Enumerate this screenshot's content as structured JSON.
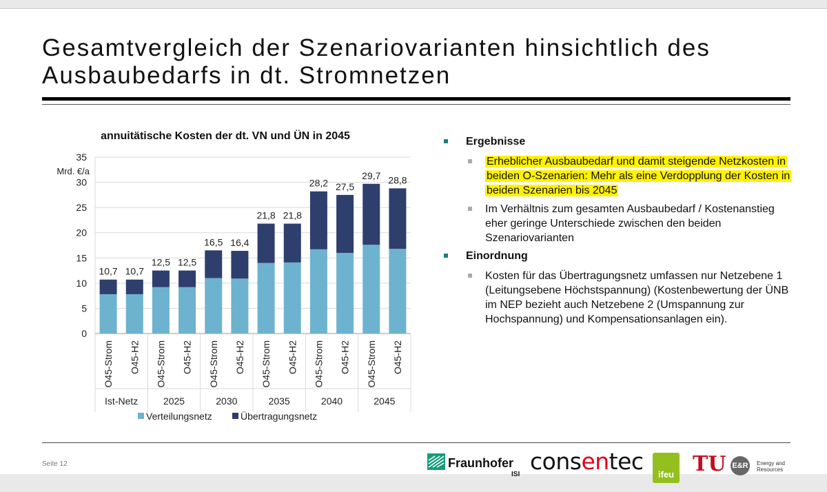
{
  "title_line1": "Gesamtvergleich der Szenariovarianten hinsichtlich des",
  "title_line2": "Ausbaubedarfs in dt. Stromnetzen",
  "page_number": "Seite 12",
  "chart_data": {
    "type": "bar",
    "stacked": true,
    "title": "annuitätische Kosten der dt. VN und ÜN in 2045",
    "ylabel": "Mrd. €/a",
    "ylim": [
      0,
      35
    ],
    "yticks": [
      "0",
      "5",
      "10",
      "15",
      "20",
      "25",
      "30",
      "35"
    ],
    "grid": true,
    "categories": [
      "O45-Strom",
      "O45-H2",
      "O45-Strom",
      "O45-H2",
      "O45-Strom",
      "O45-H2",
      "O45-Strom",
      "O45-H2",
      "O45-Strom",
      "O45-H2",
      "O45-Strom",
      "O45-H2"
    ],
    "groups": [
      "Ist-Netz",
      "2025",
      "2030",
      "2035",
      "2040",
      "2045"
    ],
    "series": [
      {
        "name": "Verteilungsnetz",
        "color": "#6db3cf",
        "values": [
          7.8,
          7.8,
          9.2,
          9.2,
          11.0,
          10.9,
          14.0,
          14.1,
          16.7,
          16.0,
          17.6,
          16.8
        ]
      },
      {
        "name": "Übertragungsnetz",
        "color": "#2e3f6e",
        "values": [
          2.9,
          2.9,
          3.3,
          3.3,
          5.5,
          5.5,
          7.8,
          7.7,
          11.5,
          11.5,
          12.1,
          12.0
        ]
      }
    ],
    "totals": [
      "10,7",
      "10,7",
      "12,5",
      "12,5",
      "16,5",
      "16,4",
      "21,8",
      "21,8",
      "28,2",
      "27,5",
      "29,7",
      "28,8"
    ],
    "legend_position": "bottom"
  },
  "bullets": {
    "h1": "Ergebnisse",
    "b1_highlight": "Erheblicher Ausbaubedarf und damit steigende Netzkosten in beiden O-Szenarien: Mehr als eine Verdopplung der Kosten in beiden Szenarien bis 2045",
    "b2": "Im Verhältnis zum gesamten Ausbaubedarf / Kostenanstieg eher geringe Unterschiede zwischen den beiden Szenariovarianten",
    "h2": "Einordnung",
    "b3": "Kosten für das Übertragungsnetz umfassen nur Netzebene 1 (Leitungsebene Höchstspannung) (Kostenbewertung der ÜNB im NEP bezieht auch Netzebene 2 (Umspannung zur Hochspannung) und Kompensationsanlagen ein)."
  },
  "logos": {
    "fraunhofer": "Fraunhofer",
    "fraunhofer_sub": "ISI",
    "consentec_a": "cons",
    "consentec_b": "en",
    "consentec_c": "tec",
    "ifeu": "ifeu",
    "tu": "TU",
    "er_badge": "E&R",
    "er_text": "Energy and Resources"
  },
  "colors": {
    "highlight": "#fff200",
    "bullet_l1": "#1b7f7a",
    "bullet_l2": "#aaaaaa"
  }
}
